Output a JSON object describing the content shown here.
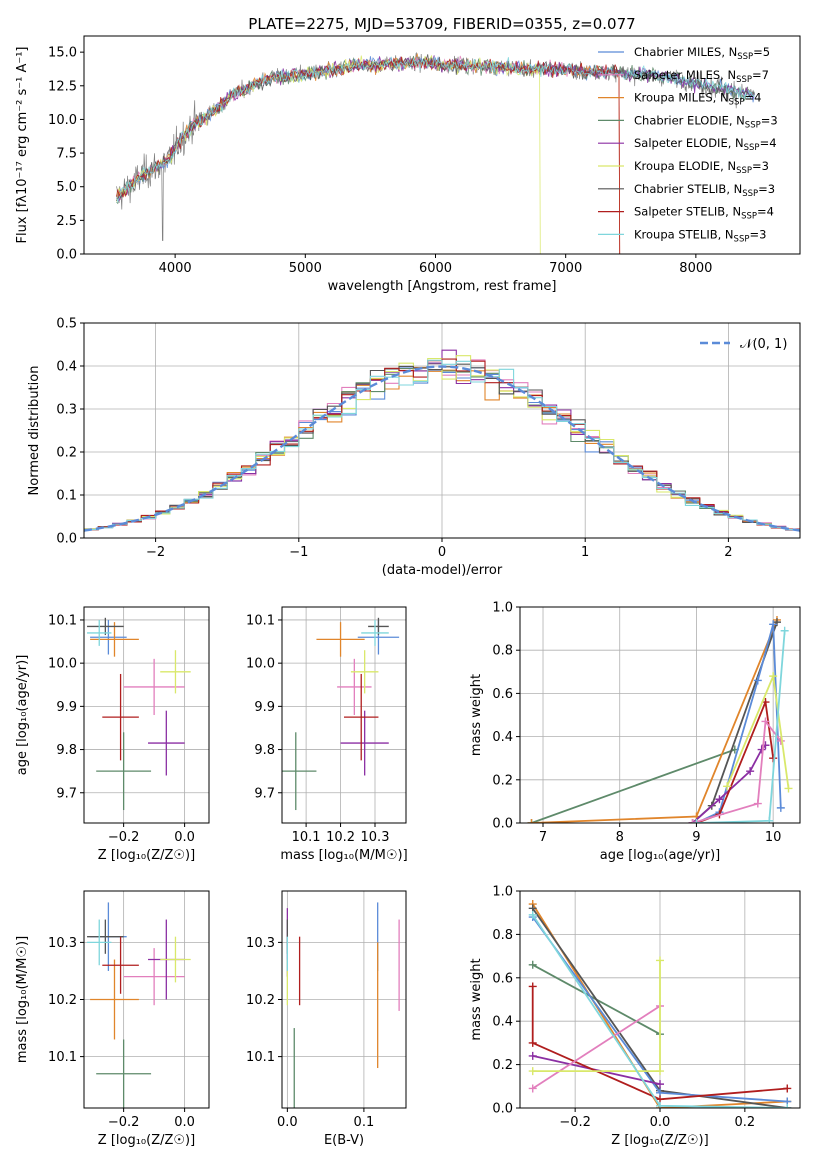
{
  "chart_data": [
    {
      "id": "spectrum",
      "type": "line",
      "title": "PLATE=2275, MJD=53709, FIBERID=0355, z=0.077",
      "xlabel": "wavelength [Angstrom, rest frame]",
      "ylabel": "Flux [fλ10⁻¹⁷ erg cm⁻² s⁻¹ A⁻¹]",
      "xlim": [
        3300,
        8800
      ],
      "ylim": [
        0,
        16.2
      ],
      "xticks": [
        4000,
        5000,
        6000,
        7000,
        8000
      ],
      "yticks": [
        0.0,
        2.5,
        5.0,
        7.5,
        10.0,
        12.5,
        15.0
      ],
      "grid": false,
      "legend_position": "top-right",
      "wavelength": [
        3550,
        3650,
        3750,
        3850,
        3950,
        4050,
        4150,
        4250,
        4350,
        4450,
        4550,
        4650,
        4750,
        4850,
        4950,
        5050,
        5150,
        5250,
        5350,
        5450,
        5550,
        5650,
        5750,
        5850,
        5950,
        6050,
        6150,
        6250,
        6350,
        6450,
        6550,
        6650,
        6750,
        6850,
        6950,
        7050,
        7150,
        7250,
        7350,
        7450,
        7550,
        7650,
        7750,
        7850,
        7950,
        8050,
        8150,
        8250,
        8350,
        8450
      ],
      "flux": [
        4.2,
        5.0,
        5.9,
        6.4,
        7.0,
        8.6,
        9.7,
        10.3,
        11.0,
        11.9,
        12.3,
        12.8,
        13.1,
        13.2,
        13.3,
        13.5,
        13.6,
        13.7,
        13.9,
        14.1,
        14.0,
        14.2,
        14.1,
        14.2,
        14.2,
        14.0,
        14.1,
        14.0,
        14.0,
        13.9,
        13.9,
        13.8,
        13.7,
        13.8,
        13.7,
        13.7,
        13.6,
        13.6,
        13.5,
        13.4,
        13.4,
        13.3,
        13.1,
        13.0,
        12.8,
        12.6,
        12.4,
        12.2,
        12.0,
        11.8
      ],
      "series": [
        {
          "name": "Chabrier MILES, N",
          "sub": "SSP",
          "suffix": "=5",
          "color": "#5b8bd8"
        },
        {
          "name": "Salpeter MILES, N",
          "sub": "SSP",
          "suffix": "=7",
          "color": "#e27fbd"
        },
        {
          "name": "Kroupa MILES, N",
          "sub": "SSP",
          "suffix": "=4",
          "color": "#e0852b"
        },
        {
          "name": "Chabrier ELODIE, N",
          "sub": "SSP",
          "suffix": "=3",
          "color": "#5e8a6a"
        },
        {
          "name": "Salpeter ELODIE, N",
          "sub": "SSP",
          "suffix": "=4",
          "color": "#8b2fa3"
        },
        {
          "name": "Kroupa ELODIE, N",
          "sub": "SSP",
          "suffix": "=3",
          "color": "#d9e86a"
        },
        {
          "name": "Chabrier STELIB, N",
          "sub": "SSP",
          "suffix": "=3",
          "color": "#555555"
        },
        {
          "name": "Salpeter STELIB, N",
          "sub": "SSP",
          "suffix": "=4",
          "color": "#b01e1e"
        },
        {
          "name": "Kroupa STELIB, N",
          "sub": "SSP",
          "suffix": "=3",
          "color": "#7fd6dc"
        }
      ]
    },
    {
      "id": "residuals",
      "type": "line",
      "xlabel": "(data-model)/error",
      "ylabel": "Normed distribution",
      "xlim": [
        -2.5,
        2.5
      ],
      "ylim": [
        0,
        0.5
      ],
      "xticks": [
        -2,
        -1,
        0,
        1,
        2
      ],
      "yticks": [
        0.0,
        0.1,
        0.2,
        0.3,
        0.4,
        0.5
      ],
      "grid": true,
      "legend": "𝒩(0, 1)",
      "legend_position": "top-right",
      "bin_width": 0.1,
      "gauss_color": "#5b8bd8",
      "hist_colors": [
        "#5b8bd8",
        "#e27fbd",
        "#e0852b",
        "#5e8a6a",
        "#8b2fa3",
        "#d9e86a",
        "#555555",
        "#b01e1e",
        "#7fd6dc"
      ]
    },
    {
      "id": "age_vs_Z",
      "type": "scatter",
      "xlabel": "Z [log₁₀(Z/Z☉)]",
      "ylabel": "age  [log₁₀(age/yr)]",
      "xlim": [
        -0.33,
        0.08
      ],
      "ylim": [
        9.63,
        10.13
      ],
      "xticks": [
        -0.2,
        0.0
      ],
      "yticks": [
        9.7,
        9.8,
        9.9,
        10.0,
        10.1
      ],
      "grid": true,
      "points": [
        {
          "x": -0.25,
          "xerr": 0.06,
          "y": 10.06,
          "yerr": 0.04,
          "color": "#5b8bd8"
        },
        {
          "x": -0.1,
          "xerr": 0.1,
          "y": 9.945,
          "yerr": 0.065,
          "color": "#e27fbd"
        },
        {
          "x": -0.23,
          "xerr": 0.08,
          "y": 10.055,
          "yerr": 0.04,
          "color": "#e0852b"
        },
        {
          "x": -0.2,
          "xerr": 0.09,
          "y": 9.75,
          "yerr": 0.09,
          "color": "#5e8a6a"
        },
        {
          "x": -0.06,
          "xerr": 0.06,
          "y": 9.815,
          "yerr": 0.075,
          "color": "#8b2fa3"
        },
        {
          "x": -0.03,
          "xerr": 0.05,
          "y": 9.98,
          "yerr": 0.05,
          "color": "#d9e86a"
        },
        {
          "x": -0.26,
          "xerr": 0.06,
          "y": 10.085,
          "yerr": 0.02,
          "color": "#555555"
        },
        {
          "x": -0.21,
          "xerr": 0.06,
          "y": 9.875,
          "yerr": 0.1,
          "color": "#b01e1e"
        },
        {
          "x": -0.28,
          "xerr": 0.04,
          "y": 10.07,
          "yerr": 0.03,
          "color": "#7fd6dc"
        }
      ]
    },
    {
      "id": "age_vs_mass",
      "type": "scatter",
      "xlabel": "mass [log₁₀(M/M☉)]",
      "ylabel": "",
      "xlim": [
        10.03,
        10.39
      ],
      "ylim": [
        9.63,
        10.13
      ],
      "xticks": [
        10.1,
        10.2,
        10.3
      ],
      "yticks": [
        9.7,
        9.8,
        9.9,
        10.0,
        10.1
      ],
      "grid": true,
      "points": [
        {
          "x": 10.31,
          "xerr": 0.06,
          "y": 10.06,
          "yerr": 0.04,
          "color": "#5b8bd8"
        },
        {
          "x": 10.24,
          "xerr": 0.05,
          "y": 9.945,
          "yerr": 0.065,
          "color": "#e27fbd"
        },
        {
          "x": 10.2,
          "xerr": 0.07,
          "y": 10.055,
          "yerr": 0.04,
          "color": "#e0852b"
        },
        {
          "x": 10.07,
          "xerr": 0.06,
          "y": 9.75,
          "yerr": 0.09,
          "color": "#5e8a6a"
        },
        {
          "x": 10.27,
          "xerr": 0.07,
          "y": 9.815,
          "yerr": 0.075,
          "color": "#8b2fa3"
        },
        {
          "x": 10.27,
          "xerr": 0.04,
          "y": 9.98,
          "yerr": 0.05,
          "color": "#d9e86a"
        },
        {
          "x": 10.31,
          "xerr": 0.03,
          "y": 10.085,
          "yerr": 0.02,
          "color": "#555555"
        },
        {
          "x": 10.26,
          "xerr": 0.05,
          "y": 9.875,
          "yerr": 0.1,
          "color": "#b01e1e"
        },
        {
          "x": 10.3,
          "xerr": 0.04,
          "y": 10.07,
          "yerr": 0.03,
          "color": "#7fd6dc"
        }
      ]
    },
    {
      "id": "weight_vs_age",
      "type": "line",
      "xlabel": "age  [log₁₀(age/yr)]",
      "ylabel": "mass weight",
      "xlim": [
        6.7,
        10.35
      ],
      "ylim": [
        0,
        1.0
      ],
      "xticks": [
        7,
        8,
        9,
        10
      ],
      "yticks": [
        0.0,
        0.2,
        0.4,
        0.6,
        0.8,
        1.0
      ],
      "grid": true,
      "series": [
        {
          "color": "#5e8a6a",
          "x": [
            6.85,
            9.5
          ],
          "y": [
            0.0,
            0.34
          ]
        },
        {
          "color": "#e0852b",
          "x": [
            6.85,
            9.0,
            10.05
          ],
          "y": [
            0.0,
            0.03,
            0.94
          ]
        },
        {
          "color": "#555555",
          "x": [
            8.95,
            9.2,
            10.05
          ],
          "y": [
            0.0,
            0.08,
            0.93
          ]
        },
        {
          "color": "#5b8bd8",
          "x": [
            9.0,
            9.3,
            9.8,
            10.0,
            10.1
          ],
          "y": [
            0.0,
            0.05,
            0.66,
            0.92,
            0.07
          ]
        },
        {
          "color": "#8b2fa3",
          "x": [
            8.95,
            9.3,
            9.7,
            9.85,
            9.9
          ],
          "y": [
            0.0,
            0.11,
            0.24,
            0.34,
            0.36
          ]
        },
        {
          "color": "#b01e1e",
          "x": [
            9.0,
            9.3,
            9.9,
            10.0
          ],
          "y": [
            0.0,
            0.04,
            0.56,
            0.3
          ]
        },
        {
          "color": "#e27fbd",
          "x": [
            8.95,
            9.8,
            9.9,
            10.1
          ],
          "y": [
            0.0,
            0.09,
            0.47,
            0.38
          ]
        },
        {
          "color": "#d9e86a",
          "x": [
            9.4,
            10.0,
            10.2
          ],
          "y": [
            0.17,
            0.68,
            0.16
          ]
        },
        {
          "color": "#7fd6dc",
          "x": [
            9.0,
            9.95,
            10.15
          ],
          "y": [
            0.0,
            0.01,
            0.89
          ]
        }
      ]
    },
    {
      "id": "mass_vs_Z",
      "type": "scatter",
      "xlabel": "Z [log₁₀(Z/Z☉)]",
      "ylabel": "mass [log₁₀(M/M☉)]",
      "xlim": [
        -0.33,
        0.08
      ],
      "ylim": [
        10.01,
        10.39
      ],
      "xticks": [
        -0.2,
        0.0
      ],
      "yticks": [
        10.1,
        10.2,
        10.3
      ],
      "grid": true,
      "points": [
        {
          "x": -0.25,
          "xerr": 0.06,
          "y": 10.31,
          "yerr": 0.06,
          "color": "#5b8bd8"
        },
        {
          "x": -0.1,
          "xerr": 0.1,
          "y": 10.24,
          "yerr": 0.05,
          "color": "#e27fbd"
        },
        {
          "x": -0.23,
          "xerr": 0.08,
          "y": 10.2,
          "yerr": 0.07,
          "color": "#e0852b"
        },
        {
          "x": -0.2,
          "xerr": 0.09,
          "y": 10.07,
          "yerr": 0.06,
          "color": "#5e8a6a"
        },
        {
          "x": -0.06,
          "xerr": 0.06,
          "y": 10.27,
          "yerr": 0.07,
          "color": "#8b2fa3"
        },
        {
          "x": -0.03,
          "xerr": 0.05,
          "y": 10.27,
          "yerr": 0.04,
          "color": "#d9e86a"
        },
        {
          "x": -0.26,
          "xerr": 0.06,
          "y": 10.31,
          "yerr": 0.03,
          "color": "#555555"
        },
        {
          "x": -0.21,
          "xerr": 0.06,
          "y": 10.26,
          "yerr": 0.05,
          "color": "#b01e1e"
        },
        {
          "x": -0.28,
          "xerr": 0.04,
          "y": 10.3,
          "yerr": 0.04,
          "color": "#7fd6dc"
        }
      ]
    },
    {
      "id": "mass_vs_ebv",
      "type": "scatter",
      "xlabel": "E(B-V)",
      "ylabel": "",
      "xlim": [
        -0.007,
        0.155
      ],
      "ylim": [
        10.01,
        10.39
      ],
      "xticks": [
        0.0,
        0.1
      ],
      "yticks": [
        10.1,
        10.2,
        10.3
      ],
      "grid": true,
      "points": [
        {
          "x": 0.118,
          "yerr": 0.06,
          "y": 10.31,
          "color": "#5b8bd8"
        },
        {
          "x": 0.146,
          "yerr": 0.08,
          "y": 10.26,
          "color": "#e27fbd"
        },
        {
          "x": 0.118,
          "yerr": 0.11,
          "y": 10.19,
          "color": "#e0852b"
        },
        {
          "x": 0.009,
          "yerr": 0.07,
          "y": 10.08,
          "color": "#5e8a6a"
        },
        {
          "x": 0.0,
          "yerr": 0.06,
          "y": 10.3,
          "color": "#8b2fa3"
        },
        {
          "x": 0.0,
          "yerr": 0.04,
          "y": 10.23,
          "color": "#d9e86a"
        },
        {
          "x": 0.0,
          "yerr": 0.03,
          "y": 10.31,
          "color": "#555555"
        },
        {
          "x": 0.016,
          "yerr": 0.06,
          "y": 10.25,
          "color": "#b01e1e"
        },
        {
          "x": 0.0,
          "yerr": 0.03,
          "y": 10.28,
          "color": "#7fd6dc"
        }
      ]
    },
    {
      "id": "weight_vs_Z",
      "type": "line",
      "xlabel": "Z [log₁₀(Z/Z☉)]",
      "ylabel": "mass weight",
      "xlim": [
        -0.33,
        0.33
      ],
      "ylim": [
        0,
        1.0
      ],
      "xticks": [
        -0.2,
        0.0,
        0.2
      ],
      "yticks": [
        0.0,
        0.2,
        0.4,
        0.6,
        0.8,
        1.0
      ],
      "grid": true,
      "series": [
        {
          "color": "#5e8a6a",
          "x": [
            -0.3,
            0.0
          ],
          "y": [
            0.66,
            0.34
          ]
        },
        {
          "color": "#e0852b",
          "x": [
            -0.3,
            0.0,
            0.3
          ],
          "y": [
            0.94,
            0.0,
            0.03
          ]
        },
        {
          "color": "#555555",
          "x": [
            -0.3,
            0.0,
            0.3
          ],
          "y": [
            0.92,
            0.08,
            0.0
          ]
        },
        {
          "color": "#5b8bd8",
          "x": [
            -0.3,
            0.0,
            0.3
          ],
          "y": [
            0.88,
            0.07,
            0.03
          ]
        },
        {
          "color": "#8b2fa3",
          "x": [
            -0.3,
            0.0
          ],
          "y": [
            0.24,
            0.11
          ]
        },
        {
          "color": "#b01e1e",
          "x": [
            -0.3,
            -0.3,
            0.0,
            0.3
          ],
          "y": [
            0.56,
            0.3,
            0.04,
            0.09
          ]
        },
        {
          "color": "#e27fbd",
          "x": [
            -0.3,
            0.0
          ],
          "y": [
            0.09,
            0.47
          ]
        },
        {
          "color": "#d9e86a",
          "x": [
            -0.3,
            0.0,
            0.0
          ],
          "y": [
            0.17,
            0.17,
            0.68
          ]
        },
        {
          "color": "#7fd6dc",
          "x": [
            -0.3,
            0.0,
            0.3
          ],
          "y": [
            0.89,
            0.01,
            0.0
          ]
        }
      ]
    }
  ]
}
